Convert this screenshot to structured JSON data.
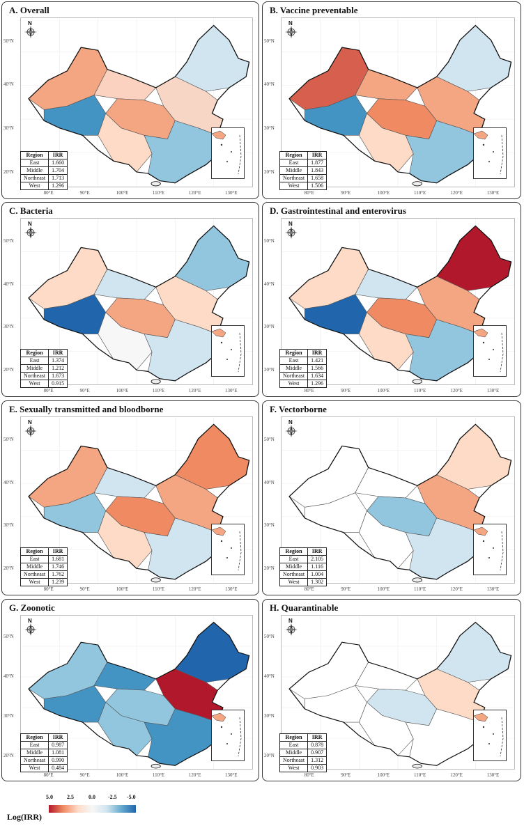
{
  "lat_labels": [
    "50°N",
    "40°N",
    "30°N",
    "20°N"
  ],
  "lon_labels": [
    "80°E",
    "90°E",
    "100°E",
    "110°E",
    "120°E",
    "130°E"
  ],
  "compass_label": "N",
  "table_headers": [
    "Region",
    "IRR"
  ],
  "panels": [
    {
      "title": "A. Overall",
      "rows": [
        [
          "East",
          "1.660"
        ],
        [
          "Middle",
          "1.704"
        ],
        [
          "Northeast",
          "1.713"
        ],
        [
          "West",
          "1.296"
        ]
      ],
      "colors": [
        "#f4a582",
        "#fbd2c0",
        "#d1e5f0",
        "#4393c3",
        "#f7d6c6",
        "#f4a582",
        "#fddbc7",
        "#92c5de"
      ]
    },
    {
      "title": "B. Vaccine preventable",
      "rows": [
        [
          "East",
          "1.877"
        ],
        [
          "Middle",
          "1.843"
        ],
        [
          "Northeast",
          "1.658"
        ],
        [
          "West",
          "1.506"
        ]
      ],
      "colors": [
        "#d6604d",
        "#f4a582",
        "#d1e5f0",
        "#4393c3",
        "#f4a582",
        "#ef8a62",
        "#fddbc7",
        "#92c5de"
      ]
    },
    {
      "title": "C. Bacteria",
      "rows": [
        [
          "East",
          "1.374"
        ],
        [
          "Middle",
          "1.212"
        ],
        [
          "Northeast",
          "1.673"
        ],
        [
          "West",
          "0.915"
        ]
      ],
      "colors": [
        "#fddbc7",
        "#d1e5f0",
        "#92c5de",
        "#2166ac",
        "#fddbc7",
        "#f4a582",
        "#f7f7f7",
        "#d1e5f0"
      ]
    },
    {
      "title": "D. Gastrointestinal and enterovirus",
      "rows": [
        [
          "East",
          "1.421"
        ],
        [
          "Middle",
          "1.566"
        ],
        [
          "Northeast",
          "1.634"
        ],
        [
          "West",
          "1.296"
        ]
      ],
      "colors": [
        "#fddbc7",
        "#d1e5f0",
        "#b2182b",
        "#2166ac",
        "#f4a582",
        "#ef8a62",
        "#fddbc7",
        "#92c5de"
      ]
    },
    {
      "title": "E. Sexually transmitted and bloodborne",
      "rows": [
        [
          "East",
          "1.681"
        ],
        [
          "Middle",
          "1.746"
        ],
        [
          "Northeast",
          "1.762"
        ],
        [
          "West",
          "1.239"
        ]
      ],
      "colors": [
        "#f4a582",
        "#d1e5f0",
        "#ef8a62",
        "#92c5de",
        "#f4a582",
        "#ef8a62",
        "#fddbc7",
        "#d1e5f0"
      ]
    },
    {
      "title": "F. Vectorborne",
      "rows": [
        [
          "East",
          "2.105"
        ],
        [
          "Middle",
          "1.116"
        ],
        [
          "Northeast",
          "1.004"
        ],
        [
          "West",
          "1.302"
        ]
      ],
      "colors": [
        "#ffffff",
        "#ffffff",
        "#fddbc7",
        "#ffffff",
        "#f4a582",
        "#92c5de",
        "#ffffff",
        "#d1e5f0"
      ]
    },
    {
      "title": "G. Zoonotic",
      "rows": [
        [
          "East",
          "0.987"
        ],
        [
          "Middle",
          "1.081"
        ],
        [
          "Northeast",
          "0.990"
        ],
        [
          "West",
          "0.484"
        ]
      ],
      "colors": [
        "#92c5de",
        "#4393c3",
        "#2166ac",
        "#4393c3",
        "#b2182b",
        "#92c5de",
        "#92c5de",
        "#4393c3"
      ]
    },
    {
      "title": "H. Quarantinable",
      "rows": [
        [
          "East",
          "0.878"
        ],
        [
          "Middle",
          "0.907"
        ],
        [
          "Northeast",
          "1.312"
        ],
        [
          "West",
          "0.903"
        ]
      ],
      "colors": [
        "#ffffff",
        "#ffffff",
        "#d1e5f0",
        "#ffffff",
        "#fddbc7",
        "#d1e5f0",
        "#ffffff",
        "#ffffff"
      ]
    }
  ],
  "legend": {
    "title": "Log(IRR)",
    "ticks": [
      "5.0",
      "2.5",
      "0.0",
      "-2.5",
      "-5.0"
    ],
    "colors": [
      "#b2182b",
      "#ef8a62",
      "#fddbc7",
      "#f7f7f7",
      "#d1e5f0",
      "#67a9cf",
      "#2166ac"
    ]
  }
}
